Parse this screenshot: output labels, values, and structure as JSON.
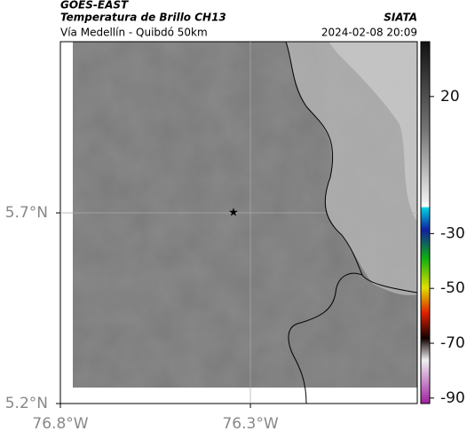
{
  "header": {
    "source": "GOES-EAST",
    "product": "Temperatura de Brillo CH13",
    "org": "SIATA",
    "route": "Vía Medellín - Quibdó 50km",
    "datetime": "2024-02-08 20:09"
  },
  "map": {
    "xlim": [
      -76.8,
      -75.861
    ],
    "ylim": [
      5.2,
      6.149
    ],
    "xticks": [
      {
        "value": -76.8,
        "label": "76.8°W"
      },
      {
        "value": -76.3,
        "label": "76.3°W"
      }
    ],
    "yticks": [
      {
        "value": 5.7,
        "label": "5.7°N"
      },
      {
        "value": 5.2,
        "label": "5.2°N"
      }
    ]
  },
  "colorbar": {
    "lim": [
      40,
      -92
    ],
    "ticks": [
      20,
      -30,
      -50,
      -70,
      -90
    ]
  }
}
